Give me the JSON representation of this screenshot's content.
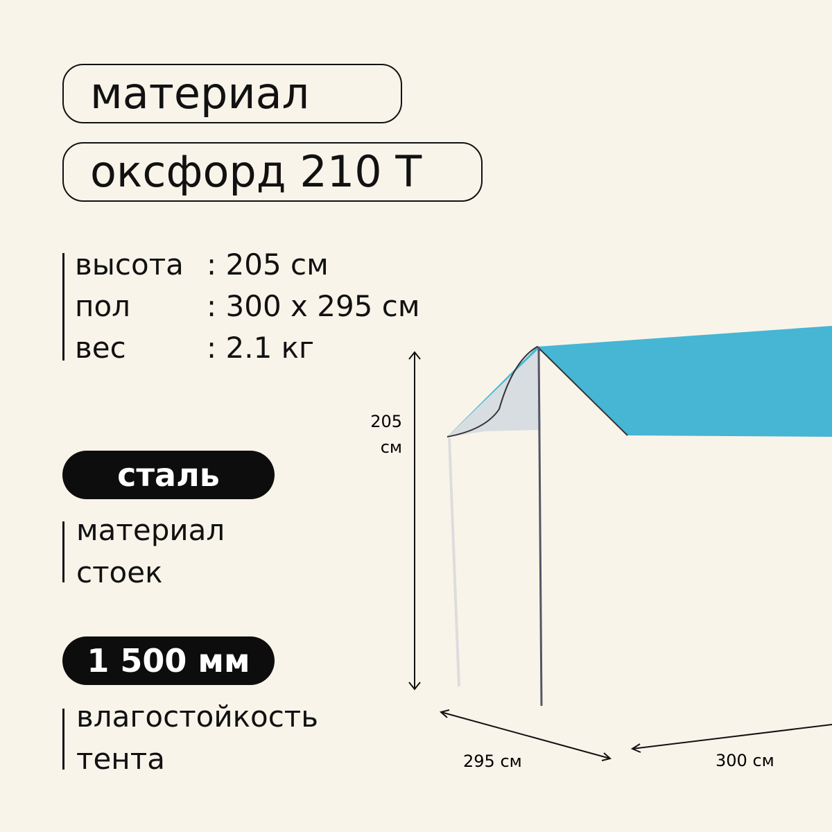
{
  "material_label": "материал",
  "material_value": "оксфорд 210 Т",
  "specs": [
    {
      "name": "высота",
      "value": ": 205 см"
    },
    {
      "name": "пол",
      "value": ": 300 х 295 см"
    },
    {
      "name": "вес",
      "value": ": 2.1 кг"
    }
  ],
  "poles": {
    "badge": "сталь",
    "caption": [
      "материал",
      "стоек"
    ]
  },
  "water": {
    "badge": "1 500 мм",
    "caption": [
      "влагостойкость",
      "тента"
    ]
  },
  "dims": {
    "height": [
      "205",
      "см"
    ],
    "depth": "295 см",
    "width": "300 см"
  }
}
